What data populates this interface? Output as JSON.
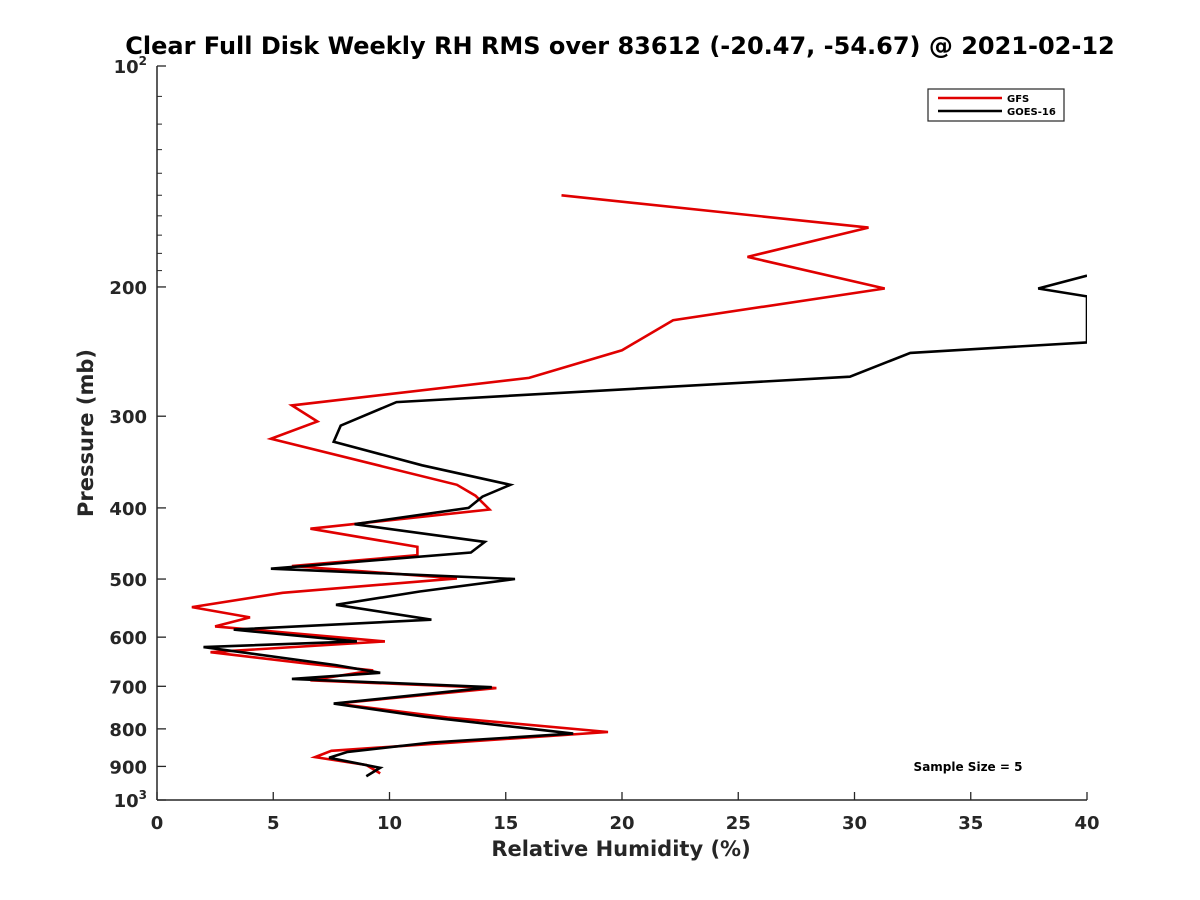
{
  "chart_data": {
    "type": "line",
    "title": "Clear Full Disk Weekly RH RMS over 83612 (-20.47, -54.67) @ 2021-02-12",
    "xlabel": "Relative Humidity (%)",
    "ylabel": "Pressure (mb)",
    "xlim": [
      0,
      40
    ],
    "ylim": [
      100,
      1000
    ],
    "y_scale": "log",
    "y_reversed": true,
    "x_ticks": [
      "0",
      "5",
      "10",
      "15",
      "20",
      "25",
      "30",
      "35",
      "40"
    ],
    "y_ticks": [
      {
        "value": 100,
        "base": "10",
        "exp": "2"
      },
      {
        "value": 200,
        "label": "200"
      },
      {
        "value": 300,
        "label": "300"
      },
      {
        "value": 400,
        "label": "400"
      },
      {
        "value": 500,
        "label": "500"
      },
      {
        "value": 600,
        "label": "600"
      },
      {
        "value": 700,
        "label": "700"
      },
      {
        "value": 800,
        "label": "800"
      },
      {
        "value": 900,
        "label": "900"
      },
      {
        "value": 1000,
        "base": "10",
        "exp": "3"
      }
    ],
    "legend_position": "top-right",
    "grid": false,
    "annotation": "Sample Size = 5",
    "series": [
      {
        "name": "GFS",
        "color": "#e00000",
        "points": [
          [
            17.4,
            150
          ],
          [
            30.6,
            166
          ],
          [
            25.4,
            182
          ],
          [
            31.3,
            201
          ],
          [
            22.2,
            222
          ],
          [
            20.0,
            244
          ],
          [
            16.0,
            266
          ],
          [
            5.8,
            290
          ],
          [
            6.9,
            305
          ],
          [
            4.9,
            322
          ],
          [
            12.9,
            372
          ],
          [
            13.7,
            385
          ],
          [
            14.3,
            402
          ],
          [
            6.6,
            427
          ],
          [
            11.2,
            452
          ],
          [
            11.2,
            464
          ],
          [
            5.8,
            480
          ],
          [
            12.9,
            499
          ],
          [
            5.4,
            522
          ],
          [
            1.5,
            546
          ],
          [
            4.0,
            564
          ],
          [
            2.5,
            580
          ],
          [
            9.8,
            608
          ],
          [
            2.3,
            629
          ],
          [
            6.5,
            652
          ],
          [
            9.3,
            666
          ],
          [
            6.6,
            687
          ],
          [
            14.6,
            704
          ],
          [
            7.7,
            739
          ],
          [
            12.5,
            772
          ],
          [
            19.4,
            808
          ],
          [
            7.5,
            857
          ],
          [
            6.8,
            874
          ],
          [
            9.0,
            896
          ],
          [
            9.6,
            920
          ]
        ]
      },
      {
        "name": "GOES-16",
        "color": "#000000",
        "points": [
          [
            40.0,
            193
          ],
          [
            37.9,
            201
          ],
          [
            40.0,
            206
          ],
          [
            40.0,
            238
          ],
          [
            32.4,
            246
          ],
          [
            29.8,
            265
          ],
          [
            10.3,
            287
          ],
          [
            7.9,
            309
          ],
          [
            7.6,
            325
          ],
          [
            11.4,
            350
          ],
          [
            15.2,
            372
          ],
          [
            14.0,
            386
          ],
          [
            13.4,
            400
          ],
          [
            8.5,
            421
          ],
          [
            14.1,
            445
          ],
          [
            13.5,
            460
          ],
          [
            4.9,
            484
          ],
          [
            15.4,
            500
          ],
          [
            11.3,
            520
          ],
          [
            7.7,
            542
          ],
          [
            11.8,
            568
          ],
          [
            3.3,
            586
          ],
          [
            8.6,
            608
          ],
          [
            2.0,
            619
          ],
          [
            7.7,
            655
          ],
          [
            9.6,
            671
          ],
          [
            5.8,
            684
          ],
          [
            14.4,
            702
          ],
          [
            7.6,
            739
          ],
          [
            11.5,
            770
          ],
          [
            17.9,
            812
          ],
          [
            11.8,
            835
          ],
          [
            8.2,
            860
          ],
          [
            7.4,
            876
          ],
          [
            9.6,
            904
          ],
          [
            9.0,
            928
          ]
        ]
      }
    ]
  }
}
